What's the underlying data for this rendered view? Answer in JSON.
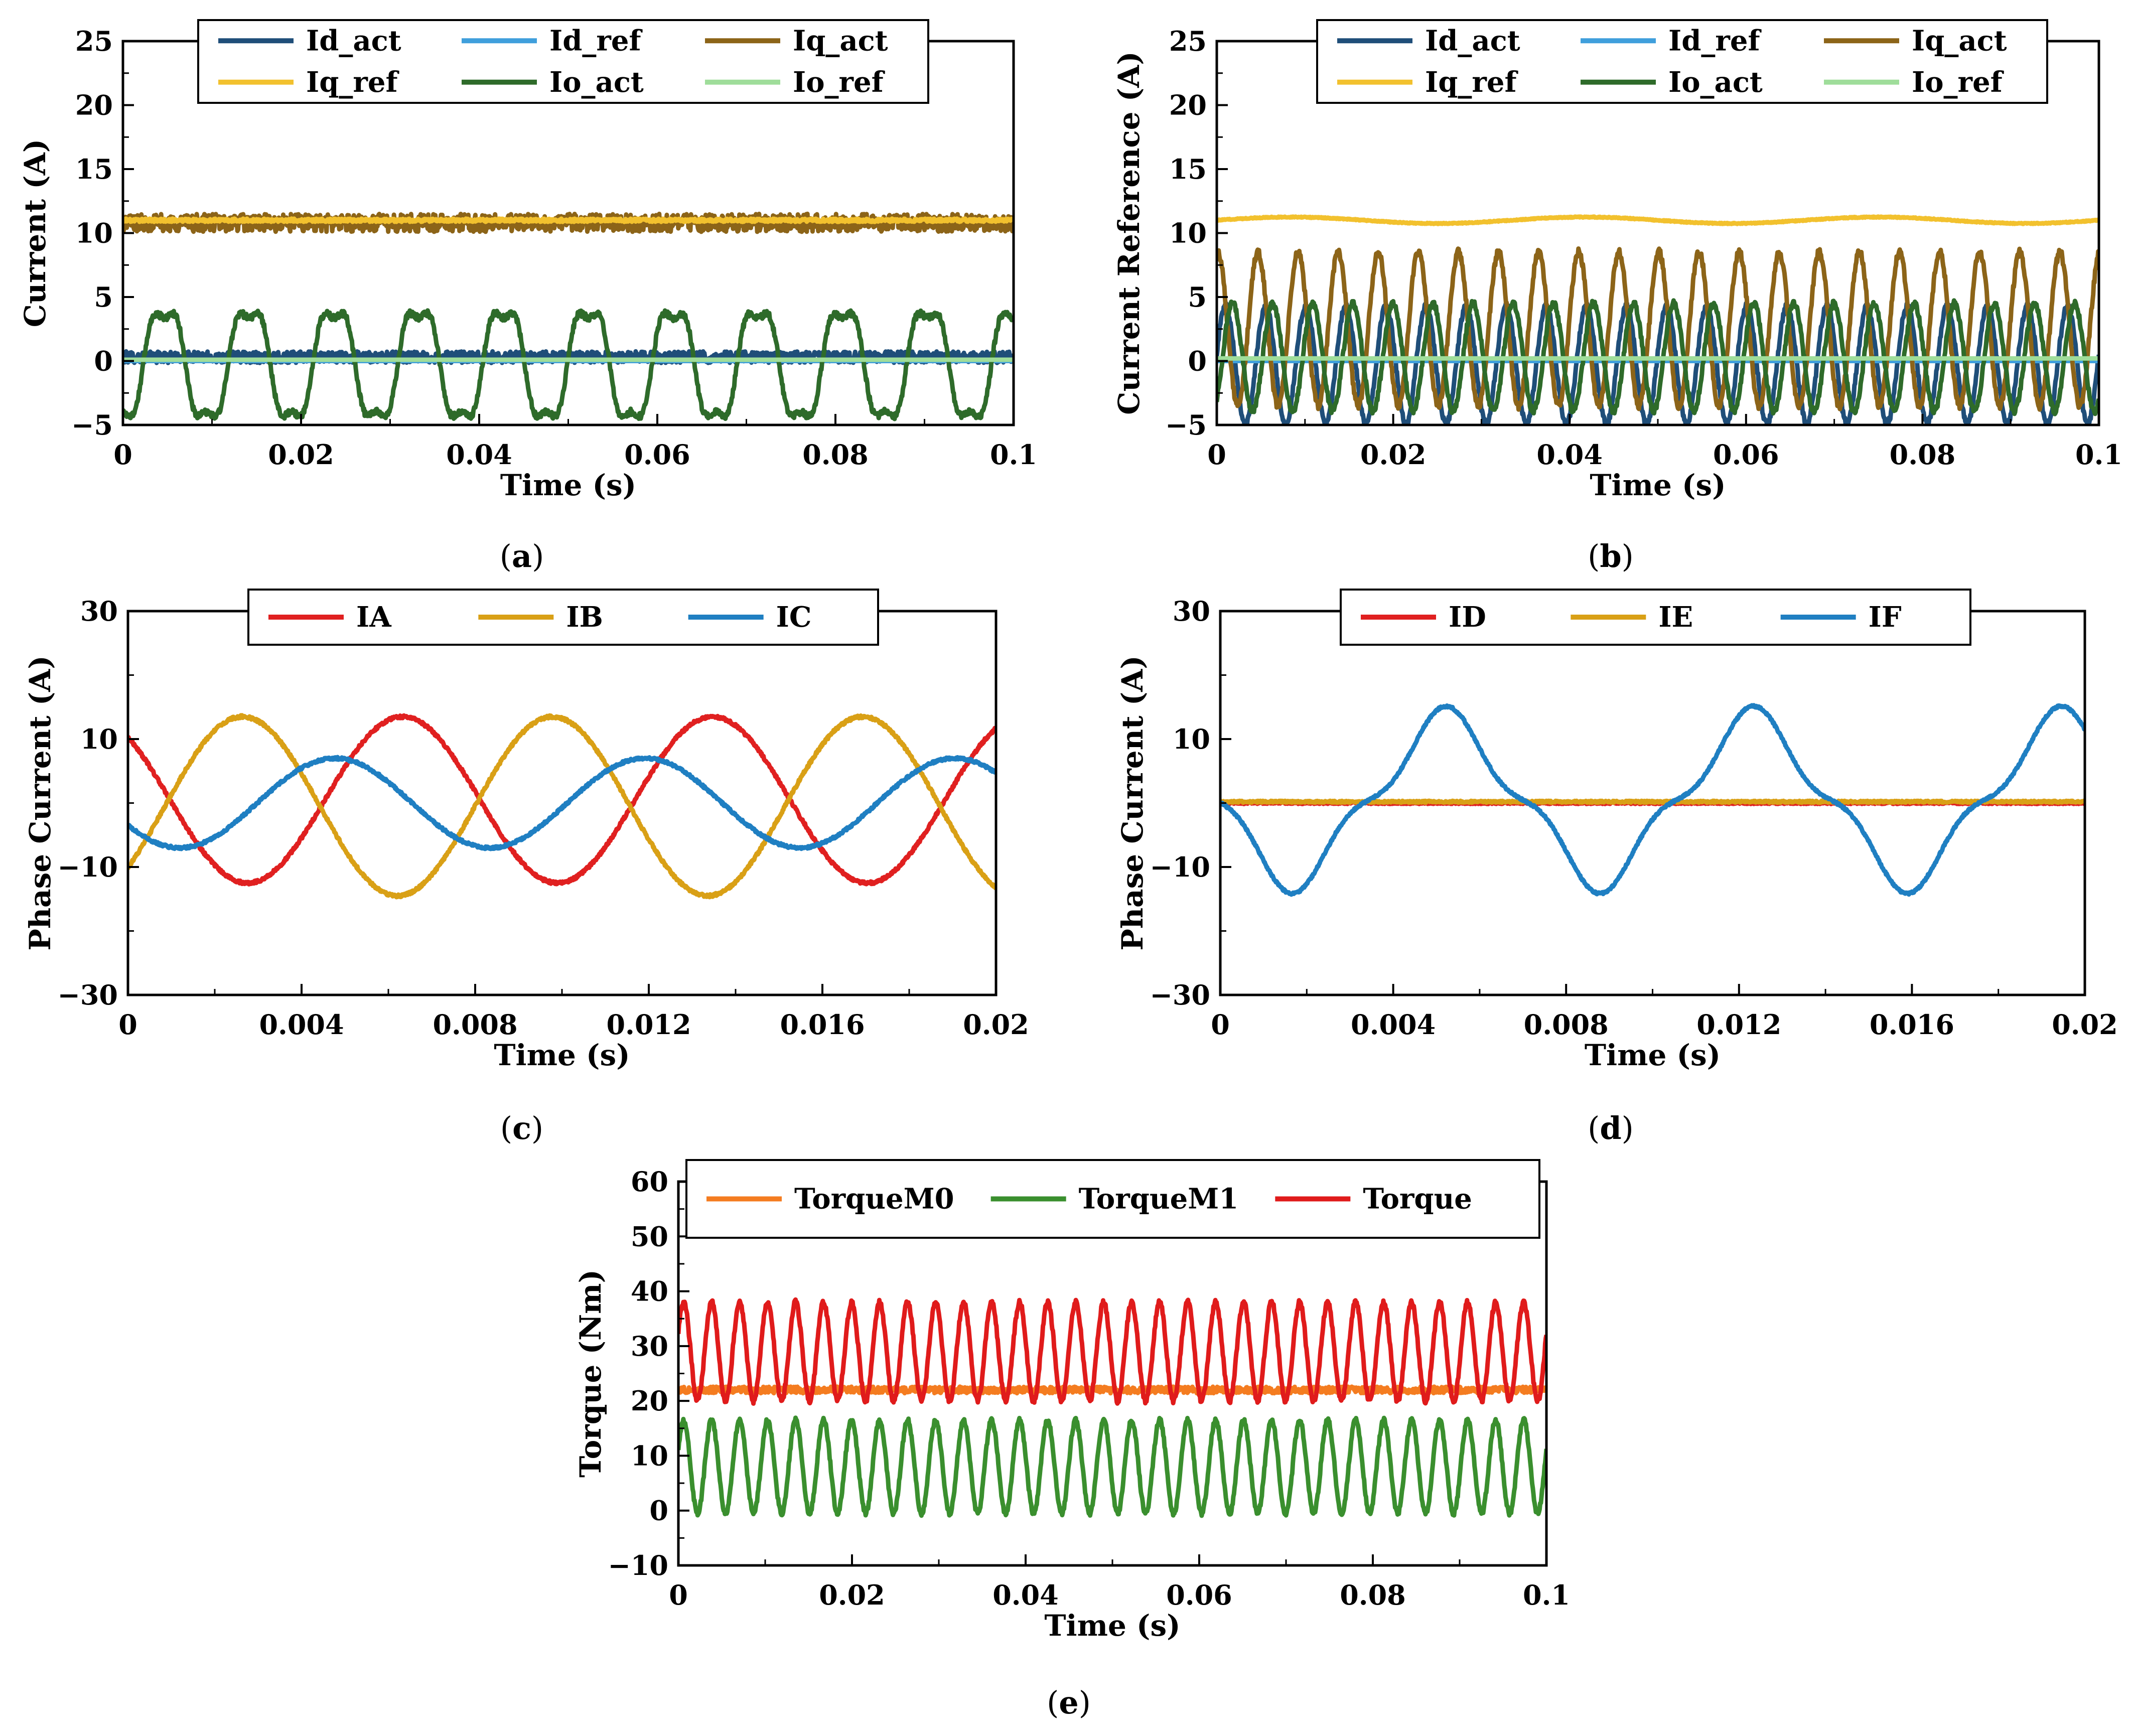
{
  "figure": {
    "panels": [
      {
        "caption_open": "(",
        "caption_letter": "a",
        "caption_close": ")"
      },
      {
        "caption_open": "(",
        "caption_letter": "b",
        "caption_close": ")"
      },
      {
        "caption_open": "(",
        "caption_letter": "c",
        "caption_close": ")"
      },
      {
        "caption_open": "(",
        "caption_letter": "d",
        "caption_close": ")"
      },
      {
        "caption_open": "(",
        "caption_letter": "e",
        "caption_close": ")"
      }
    ]
  },
  "chart_data": [
    {
      "id": "a",
      "type": "line",
      "title": "",
      "xlabel": "Time (s)",
      "ylabel": "Current (A)",
      "xlim": [
        0,
        0.1
      ],
      "ylim": [
        -5,
        25
      ],
      "xticks": [
        0,
        0.02,
        0.04,
        0.06,
        0.08,
        0.1
      ],
      "xtick_labels": [
        "0",
        "0.02",
        "0.04",
        "0.06",
        "0.08",
        "0.1"
      ],
      "yticks": [
        -5,
        0,
        5,
        10,
        15,
        20,
        25
      ],
      "ytick_labels": [
        "−5",
        "0",
        "5",
        "10",
        "15",
        "20",
        "25"
      ],
      "legend_position": "top",
      "series": [
        {
          "name": "Id_act",
          "color": "#1f4e79",
          "model": {
            "type": "noise",
            "offset": 0.3,
            "noise": 0.9
          }
        },
        {
          "name": "Id_ref",
          "color": "#3f9fdc",
          "model": {
            "type": "const",
            "value": 0
          }
        },
        {
          "name": "Iq_act",
          "color": "#8c6418",
          "model": {
            "type": "noise",
            "offset": 10.8,
            "noise": 1.4
          }
        },
        {
          "name": "Iq_ref",
          "color": "#f2c12e",
          "model": {
            "type": "noise",
            "offset": 11.0,
            "noise": 0.25
          }
        },
        {
          "name": "Io_act",
          "color": "#2e6b2a",
          "model": {
            "type": "sine",
            "offset": -0.3,
            "amp": 4.6,
            "freq": 105,
            "phase": -1.5,
            "noise": 0.5,
            "h3": 0.2
          }
        },
        {
          "name": "Io_ref",
          "color": "#9fdd9a",
          "model": {
            "type": "const",
            "value": 0.1
          }
        }
      ]
    },
    {
      "id": "b",
      "type": "line",
      "title": "",
      "xlabel": "Time (s)",
      "ylabel": "Current Reference (A)",
      "xlim": [
        0,
        0.1
      ],
      "ylim": [
        -5,
        25
      ],
      "xticks": [
        0,
        0.02,
        0.04,
        0.06,
        0.08,
        0.1
      ],
      "xtick_labels": [
        "0",
        "0.02",
        "0.04",
        "0.06",
        "0.08",
        "0.1"
      ],
      "yticks": [
        -5,
        0,
        5,
        10,
        15,
        20,
        25
      ],
      "ytick_labels": [
        "−5",
        "0",
        "5",
        "10",
        "15",
        "20",
        "25"
      ],
      "legend_position": "top",
      "series": [
        {
          "name": "Id_act",
          "color": "#1f4e79",
          "model": {
            "type": "sine",
            "offset": -0.3,
            "amp": 4.6,
            "freq": 220,
            "phase": 0.2,
            "noise": 0.5
          }
        },
        {
          "name": "Id_ref",
          "color": "#3f9fdc",
          "model": {
            "type": "const",
            "value": 0
          }
        },
        {
          "name": "Iq_act",
          "color": "#8c6418",
          "model": {
            "type": "sine",
            "offset": 2.5,
            "amp": 6.0,
            "freq": 220,
            "phase": 1.4,
            "noise": 0.6
          }
        },
        {
          "name": "Iq_ref",
          "color": "#f2c12e",
          "model": {
            "type": "sine",
            "offset": 11.0,
            "amp": 0.25,
            "freq": 30,
            "phase": 0,
            "noise": 0.08
          }
        },
        {
          "name": "Io_act",
          "color": "#2e6b2a",
          "model": {
            "type": "sine",
            "offset": 0.3,
            "amp": 4.2,
            "freq": 220,
            "phase": -0.9,
            "noise": 0.5
          }
        },
        {
          "name": "Io_ref",
          "color": "#9fdd9a",
          "model": {
            "type": "const",
            "value": 0.2
          }
        }
      ]
    },
    {
      "id": "c",
      "type": "line",
      "title": "",
      "xlabel": "Time (s)",
      "ylabel": "Phase Current (A)",
      "xlim": [
        0,
        0.02
      ],
      "ylim": [
        -30,
        30
      ],
      "xticks": [
        0,
        0.004,
        0.008,
        0.012,
        0.016,
        0.02
      ],
      "xtick_labels": [
        "0",
        "0.004",
        "0.008",
        "0.012",
        "0.016",
        "0.02"
      ],
      "yticks": [
        -30,
        -10,
        10,
        30
      ],
      "ytick_labels": [
        "−30",
        "−10",
        "10",
        "30"
      ],
      "legend_position": "top",
      "series": [
        {
          "name": "IA",
          "color": "#e02020",
          "model": {
            "type": "sine",
            "offset": 0.5,
            "amp": 13,
            "freq": 140,
            "phase": 2.29,
            "noise": 0.45
          }
        },
        {
          "name": "IB",
          "color": "#d9a016",
          "model": {
            "type": "sine",
            "offset": -0.5,
            "amp": 14,
            "freq": 140,
            "phase": -0.75,
            "noise": 0.45
          }
        },
        {
          "name": "IC",
          "color": "#1f7fc2",
          "model": {
            "type": "sine",
            "offset": 0,
            "amp": 7,
            "freq": 140,
            "phase": -2.62,
            "noise": 0.4
          }
        }
      ]
    },
    {
      "id": "d",
      "type": "line",
      "title": "",
      "xlabel": "Time (s)",
      "ylabel": "Phase Current (A)",
      "xlim": [
        0,
        0.02
      ],
      "ylim": [
        -30,
        30
      ],
      "xticks": [
        0,
        0.004,
        0.008,
        0.012,
        0.016,
        0.02
      ],
      "xtick_labels": [
        "0",
        "0.004",
        "0.008",
        "0.012",
        "0.016",
        "0.02"
      ],
      "yticks": [
        -30,
        -10,
        10,
        30
      ],
      "ytick_labels": [
        "−30",
        "−10",
        "10",
        "30"
      ],
      "legend_position": "top",
      "series": [
        {
          "name": "ID",
          "color": "#e02020",
          "model": {
            "type": "noise",
            "offset": 0,
            "noise": 0.3
          }
        },
        {
          "name": "IE",
          "color": "#d9a016",
          "model": {
            "type": "noise",
            "offset": 0.2,
            "noise": 0.3
          }
        },
        {
          "name": "IF",
          "color": "#1f7fc2",
          "model": {
            "type": "sine",
            "offset": 0.5,
            "amp": 12,
            "freq": 140.5,
            "phase": -3.04,
            "noise": 0.35,
            "h3": -0.22
          }
        }
      ]
    },
    {
      "id": "e",
      "type": "line",
      "title": "",
      "xlabel": "Time (s)",
      "ylabel": "Torque (Nm)",
      "xlim": [
        0,
        0.1
      ],
      "ylim": [
        -10,
        60
      ],
      "xticks": [
        0,
        0.02,
        0.04,
        0.06,
        0.08,
        0.1
      ],
      "xtick_labels": [
        "0",
        "0.02",
        "0.04",
        "0.06",
        "0.08",
        "0.1"
      ],
      "yticks": [
        -10,
        0,
        10,
        20,
        30,
        40,
        50,
        60
      ],
      "ytick_labels": [
        "−10",
        "0",
        "10",
        "20",
        "30",
        "40",
        "50",
        "60"
      ],
      "legend_position": "top",
      "series": [
        {
          "name": "TorqueM0",
          "color": "#f47c20",
          "model": {
            "type": "noise",
            "offset": 22,
            "noise": 1.2
          }
        },
        {
          "name": "TorqueM1",
          "color": "#3a8f2e",
          "model": {
            "type": "sine",
            "offset": 8,
            "amp": 8.5,
            "freq": 310,
            "phase": 0.4,
            "noise": 0.9
          }
        },
        {
          "name": "Torque",
          "color": "#e01b1b",
          "model": {
            "type": "sine",
            "offset": 29,
            "amp": 9.0,
            "freq": 310,
            "phase": 0.4,
            "noise": 1.0
          }
        }
      ]
    }
  ]
}
